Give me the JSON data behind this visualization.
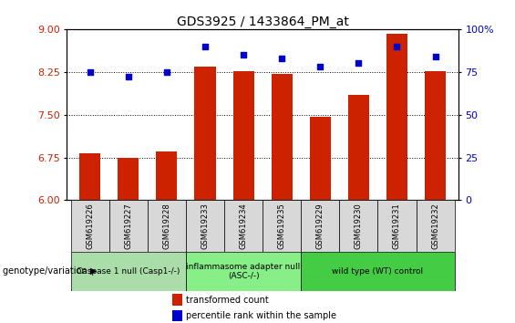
{
  "title": "GDS3925 / 1433864_PM_at",
  "samples": [
    "GSM619226",
    "GSM619227",
    "GSM619228",
    "GSM619233",
    "GSM619234",
    "GSM619235",
    "GSM619229",
    "GSM619230",
    "GSM619231",
    "GSM619232"
  ],
  "bar_values": [
    6.82,
    6.75,
    6.85,
    8.35,
    8.27,
    8.21,
    7.46,
    7.84,
    8.92,
    8.27
  ],
  "percentile_values": [
    75,
    72,
    75,
    90,
    85,
    83,
    78,
    80,
    90,
    84
  ],
  "bar_color": "#cc2200",
  "dot_color": "#0000cc",
  "ylim_left": [
    6,
    9
  ],
  "ylim_right": [
    0,
    100
  ],
  "yticks_left": [
    6,
    6.75,
    7.5,
    8.25,
    9
  ],
  "yticks_right": [
    0,
    25,
    50,
    75,
    100
  ],
  "groups": [
    {
      "label": "Caspase 1 null (Casp1-/-)",
      "start": 0,
      "end": 3,
      "color": "#aaddaa"
    },
    {
      "label": "inflammasome adapter null\n(ASC-/-)",
      "start": 3,
      "end": 6,
      "color": "#88ee88"
    },
    {
      "label": "wild type (WT) control",
      "start": 6,
      "end": 10,
      "color": "#44cc44"
    }
  ],
  "group_header": "genotype/variation",
  "legend_bar_label": "transformed count",
  "legend_dot_label": "percentile rank within the sample",
  "background_color": "#ffffff",
  "plot_bg_color": "#ffffff",
  "tick_label_color_left": "#cc2200",
  "tick_label_color_right": "#0000cc",
  "bar_width": 0.55,
  "gray_box_color": "#d8d8d8"
}
